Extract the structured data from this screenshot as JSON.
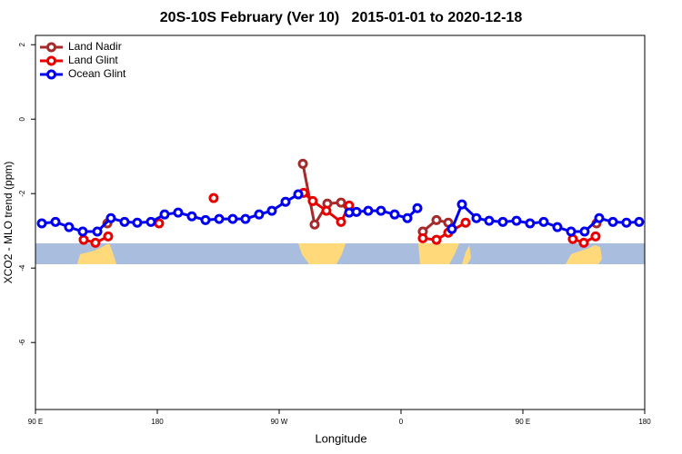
{
  "chart_data": {
    "type": "line",
    "title": "20S-10S February (Ver 10)   2015-01-01 to 2020-12-18",
    "xlabel": "Longitude",
    "ylabel": "XCO2 - MLO trend (ppm)",
    "xlim": [
      90,
      540
    ],
    "ylim": [
      -7.8,
      2.25
    ],
    "xticks": [
      {
        "value": 90,
        "label": "90 E"
      },
      {
        "value": 180,
        "label": "180"
      },
      {
        "value": 270,
        "label": "90 W"
      },
      {
        "value": 360,
        "label": "0"
      },
      {
        "value": 450,
        "label": "90 E"
      },
      {
        "value": 540,
        "label": "180"
      }
    ],
    "yticks": [
      2,
      0,
      -2,
      -4,
      -6
    ],
    "legend": "top-left",
    "series": [
      {
        "name": "Land Nadir",
        "color": "#a52a2a",
        "x": [
          143.1,
          null,
          287.5,
          296.2,
          305.6,
          315.7,
          321.7,
          null,
          376.1,
          386.2,
          394.9,
          null,
          504.4
        ],
        "values": [
          -2.8,
          null,
          -1.2,
          -2.83,
          -2.27,
          -2.24,
          -2.51,
          null,
          -3.02,
          -2.71,
          -2.78,
          null,
          -2.8
        ]
      },
      {
        "name": "Land Glint",
        "color": "#e60000",
        "x": [
          125.6,
          134.3,
          143.7,
          null,
          181.3,
          null,
          221.6,
          null,
          288.1,
          294.8,
          304.9,
          315.7,
          321.7,
          null,
          376.1,
          386.2,
          394.9,
          407.7,
          null,
          486.9,
          495.0,
          503.7
        ],
        "values": [
          -3.24,
          -3.32,
          -3.15,
          null,
          -2.8,
          null,
          -2.12,
          null,
          -1.98,
          -2.2,
          -2.46,
          -2.76,
          -2.32,
          null,
          -3.2,
          -3.24,
          -3.05,
          -2.78,
          null,
          -3.22,
          -3.32,
          -3.15
        ]
      },
      {
        "name": "Ocean Glint",
        "color": "#0000ee",
        "x": [
          94.7,
          104.8,
          114.8,
          124.9,
          135.7,
          145.7,
          155.8,
          165.2,
          175.3,
          185.4,
          195.4,
          205.5,
          215.6,
          225.7,
          235.7,
          245.1,
          255.2,
          264.6,
          274.7,
          284.1,
          null,
          321.7,
          327.1,
          335.8,
          345.2,
          355.3,
          364.7,
          372.1,
          null,
          397.6,
          405.0,
          415.7,
          425.1,
          435.2,
          445.3,
          455.3,
          465.4,
          475.5,
          485.6,
          495.6,
          506.4,
          516.5,
          526.5,
          535.9
        ],
        "values": [
          -2.8,
          -2.76,
          -2.9,
          -3.02,
          -3.02,
          -2.66,
          -2.76,
          -2.78,
          -2.76,
          -2.56,
          -2.51,
          -2.61,
          -2.71,
          -2.68,
          -2.68,
          -2.68,
          -2.56,
          -2.46,
          -2.22,
          -2.02,
          null,
          -2.51,
          -2.49,
          -2.46,
          -2.46,
          -2.56,
          -2.66,
          -2.39,
          null,
          -2.95,
          -2.29,
          -2.66,
          -2.73,
          -2.76,
          -2.73,
          -2.8,
          -2.76,
          -2.9,
          -3.02,
          -3.02,
          -2.66,
          -2.76,
          -2.78,
          -2.76
        ]
      }
    ]
  }
}
